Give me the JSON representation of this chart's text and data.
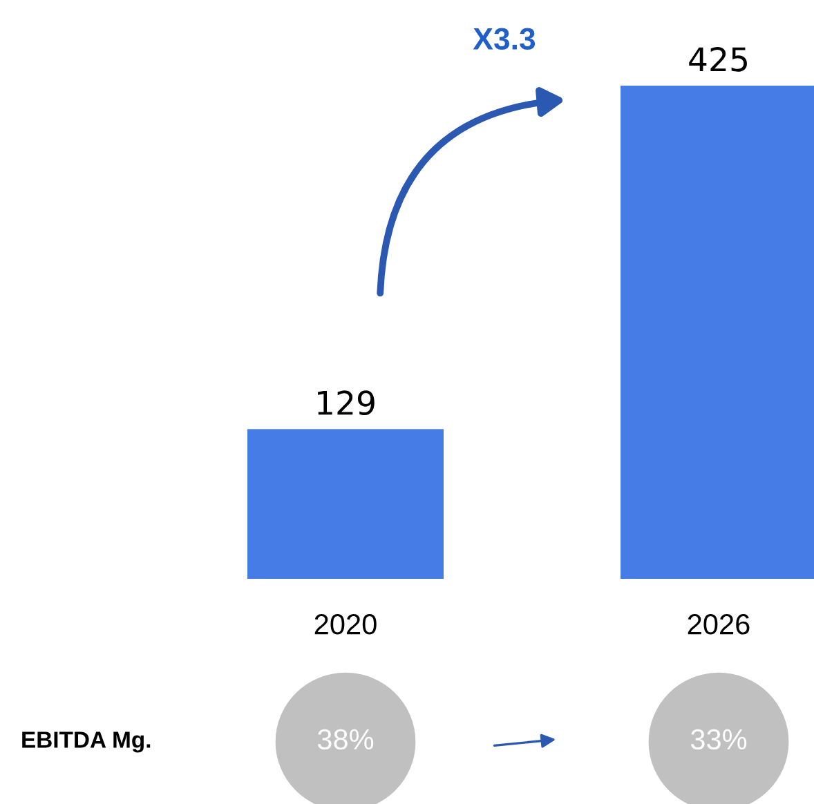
{
  "chart_data": {
    "type": "bar",
    "categories": [
      "2020",
      "2026"
    ],
    "values": [
      129,
      425
    ],
    "color": "#467ce6",
    "data_labels": true,
    "annotations": [
      "X3.3",
      "EBITDA Mg.",
      "38%",
      "33%"
    ]
  }
}
